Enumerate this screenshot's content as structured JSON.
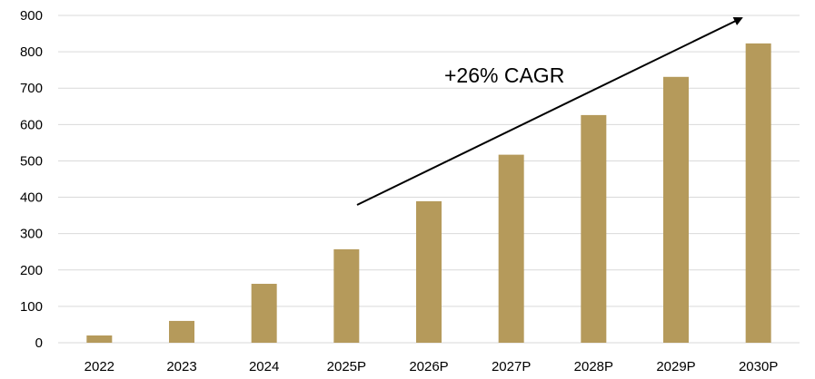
{
  "chart_data": {
    "type": "bar",
    "title": "",
    "xlabel": "",
    "ylabel": "",
    "categories": [
      "2022",
      "2023",
      "2024",
      "2025P",
      "2026P",
      "2027P",
      "2028P",
      "2029P",
      "2030P"
    ],
    "values": [
      20,
      60,
      162,
      257,
      389,
      517,
      626,
      731,
      823
    ],
    "ylim": [
      0,
      900
    ],
    "yticks": [
      0,
      100,
      200,
      300,
      400,
      500,
      600,
      700,
      800,
      900
    ],
    "grid": true,
    "legend": "none",
    "bar_color": "#b59a5b",
    "grid_color": "#d9d9d9",
    "annotation": {
      "text": "+26% CAGR",
      "arrow": "up-right trend arrow from 2025P to 2030P"
    }
  }
}
